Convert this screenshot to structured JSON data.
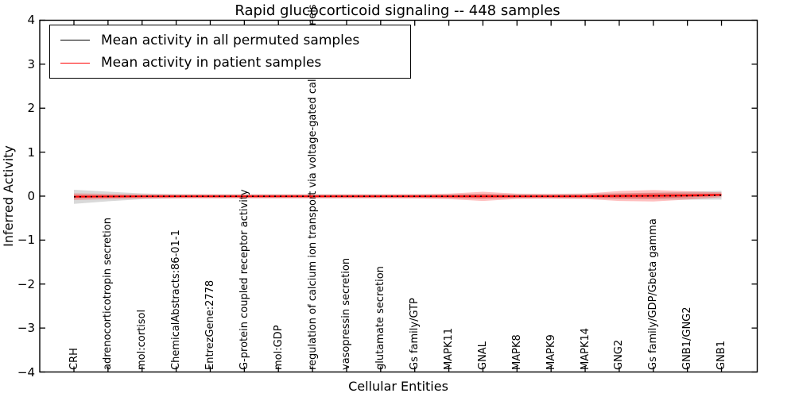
{
  "title": "Rapid glucocorticoid signaling -- 448 samples",
  "axes": {
    "xlabel": "Cellular Entities",
    "ylabel": "Inferred Activity",
    "ytick_labels": [
      "4",
      "3",
      "2",
      "1",
      "0",
      "−1",
      "−2",
      "−3",
      "−4"
    ],
    "ytick_values": [
      4,
      3,
      2,
      1,
      0,
      -1,
      -2,
      -3,
      -4
    ]
  },
  "legend": {
    "items": [
      {
        "label": "Mean activity in all permuted samples",
        "color": "#000000"
      },
      {
        "label": "Mean activity in patient samples",
        "color": "#ff0000"
      }
    ]
  },
  "colors": {
    "axis": "#000000",
    "permuted_line": "#000000",
    "patient_line": "#ff0000",
    "permuted_band": "rgba(128,128,128,0.30)",
    "patient_band": "rgba(255,0,0,0.25)",
    "patient_band_inner": "rgba(255,0,0,0.35)"
  },
  "chart_data": {
    "type": "line",
    "title": "Rapid glucocorticoid signaling -- 448 samples",
    "xlabel": "Cellular Entities",
    "ylabel": "Inferred Activity",
    "ylim": [
      -4,
      4
    ],
    "yticks": [
      4,
      3,
      2,
      1,
      0,
      -1,
      -2,
      -3,
      -4
    ],
    "grid": false,
    "legend_position": "upper left",
    "categories": [
      "CRH",
      "adrenocorticotropin secretion",
      "mol:cortisol",
      "ChemicalAbstracts:86-01-1",
      "EntrezGene:2778",
      "G-protein coupled receptor activity",
      "mol:GDP",
      "regulation of calcium ion transport via voltage-gated calcium channels",
      "vasopressin secretion",
      "glutamate secretion",
      "Gs family/GTP",
      "MAPK11",
      "GNAL",
      "MAPK8",
      "MAPK9",
      "MAPK14",
      "GNG2",
      "Gs family/GDP/Gbeta gamma",
      "GNB1/GNG2",
      "GNB1"
    ],
    "series": [
      {
        "name": "Mean activity in all permuted samples",
        "color": "#000000",
        "line_style": "dashed",
        "mean": [
          -0.015,
          -0.008,
          -0.004,
          -0.003,
          -0.003,
          -0.003,
          -0.003,
          -0.003,
          -0.003,
          -0.003,
          -0.003,
          -0.003,
          -0.003,
          -0.003,
          -0.003,
          -0.002,
          0.0,
          0.003,
          0.008,
          0.02
        ],
        "std": [
          0.16,
          0.11,
          0.065,
          0.045,
          0.042,
          0.042,
          0.042,
          0.042,
          0.042,
          0.042,
          0.042,
          0.048,
          0.055,
          0.048,
          0.048,
          0.055,
          0.065,
          0.075,
          0.088,
          0.1
        ]
      },
      {
        "name": "Mean activity in patient samples",
        "color": "#ff0000",
        "line_style": "solid",
        "mean": [
          -0.012,
          -0.008,
          -0.006,
          -0.005,
          -0.005,
          -0.005,
          -0.005,
          -0.005,
          -0.005,
          -0.005,
          -0.005,
          -0.005,
          -0.005,
          -0.004,
          -0.004,
          -0.003,
          0.002,
          0.008,
          0.015,
          0.03
        ],
        "std": [
          0.075,
          0.06,
          0.05,
          0.048,
          0.048,
          0.048,
          0.048,
          0.048,
          0.048,
          0.048,
          0.05,
          0.062,
          0.105,
          0.06,
          0.055,
          0.062,
          0.112,
          0.13,
          0.095,
          0.055
        ]
      }
    ]
  }
}
